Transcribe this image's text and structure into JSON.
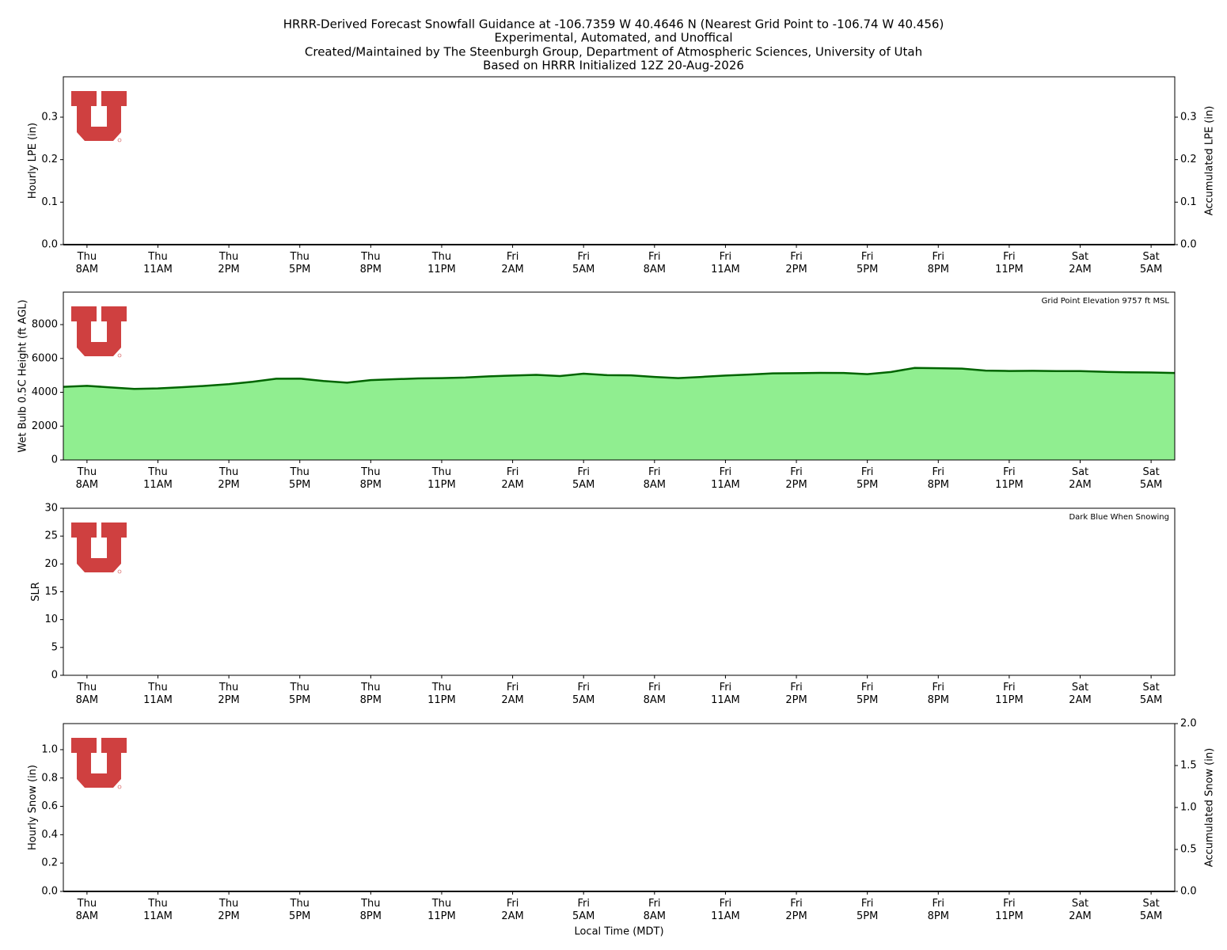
{
  "title": [
    "HRRR-Derived Forecast Snowfall Guidance at -106.7359 W 40.4646 N (Nearest Grid Point to -106.74 W 40.456)",
    "Experimental, Automated, and Unoffical",
    "Created/Maintained by The Steenburgh Group, Department of Atmospheric Sciences, University of Utah",
    "Based on HRRR Initialized 12Z 20-Aug-2026"
  ],
  "chart_data": [
    {
      "type": "line",
      "ylabel": "Hourly LPE (in)",
      "y2label": "Accumulated LPE (in)",
      "xlim": [
        0,
        47
      ],
      "ylim": [
        0,
        0.395
      ],
      "y2lim": [
        0,
        0.395
      ],
      "yticks": [
        {
          "value": 0,
          "label": "0.0"
        },
        {
          "value": 0.1,
          "label": "0.1"
        },
        {
          "value": 0.2,
          "label": "0.2"
        },
        {
          "value": 0.3,
          "label": "0.3"
        }
      ],
      "y2ticks": [
        {
          "value": 0,
          "label": "0.0"
        },
        {
          "value": 0.1,
          "label": "0.1"
        },
        {
          "value": 0.2,
          "label": "0.2"
        },
        {
          "value": 0.3,
          "label": "0.3"
        }
      ],
      "xticks": [
        {
          "value": 1,
          "label": "Thu\n8AM"
        },
        {
          "value": 4,
          "label": "Thu\n11AM"
        },
        {
          "value": 7,
          "label": "Thu\n2PM"
        },
        {
          "value": 10,
          "label": "Thu\n5PM"
        },
        {
          "value": 13,
          "label": "Thu\n8PM"
        },
        {
          "value": 16,
          "label": "Thu\n11PM"
        },
        {
          "value": 19,
          "label": "Fri\n2AM"
        },
        {
          "value": 22,
          "label": "Fri\n5AM"
        },
        {
          "value": 25,
          "label": "Fri\n8AM"
        },
        {
          "value": 28,
          "label": "Fri\n11AM"
        },
        {
          "value": 31,
          "label": "Fri\n2PM"
        },
        {
          "value": 34,
          "label": "Fri\n5PM"
        },
        {
          "value": 37,
          "label": "Fri\n8PM"
        },
        {
          "value": 40,
          "label": "Fri\n11PM"
        },
        {
          "value": 43,
          "label": "Sat\n2AM"
        },
        {
          "value": 46,
          "label": "Sat\n5AM"
        }
      ],
      "x": [
        0,
        1,
        2,
        3,
        4,
        5,
        6,
        7,
        8,
        9,
        10,
        11,
        12,
        13,
        14,
        15,
        16,
        17,
        18,
        19,
        20,
        21,
        22,
        23,
        24,
        25,
        26,
        27,
        28,
        29,
        30,
        31,
        32,
        33,
        34,
        35,
        36,
        37,
        38,
        39,
        40,
        41,
        42,
        43,
        44,
        45,
        46,
        47
      ],
      "series": [
        {
          "color": "#000000",
          "axis": "y2",
          "values": [
            0,
            0,
            0,
            0,
            0,
            0,
            0,
            0,
            0,
            0,
            0,
            0,
            0,
            0,
            0,
            0,
            0,
            0,
            0,
            0,
            0,
            0,
            0,
            0,
            0,
            0,
            0,
            0,
            0,
            0,
            0,
            0,
            0,
            0,
            0,
            0,
            0,
            0,
            0,
            0,
            0,
            0,
            0,
            0,
            0,
            0,
            0,
            0
          ]
        }
      ]
    },
    {
      "type": "area",
      "ylabel": "Wet Bulb 0.5C Height (ft AGL)",
      "annotation": "Grid Point Elevation 9757 ft MSL",
      "xlim": [
        0,
        47
      ],
      "ylim": [
        0,
        9920
      ],
      "yticks": [
        0,
        2000,
        4000,
        6000,
        8000
      ],
      "xticks": [
        {
          "value": 1,
          "label": "Thu\n8AM"
        },
        {
          "value": 4,
          "label": "Thu\n11AM"
        },
        {
          "value": 7,
          "label": "Thu\n2PM"
        },
        {
          "value": 10,
          "label": "Thu\n5PM"
        },
        {
          "value": 13,
          "label": "Thu\n8PM"
        },
        {
          "value": 16,
          "label": "Thu\n11PM"
        },
        {
          "value": 19,
          "label": "Fri\n2AM"
        },
        {
          "value": 22,
          "label": "Fri\n5AM"
        },
        {
          "value": 25,
          "label": "Fri\n8AM"
        },
        {
          "value": 28,
          "label": "Fri\n11AM"
        },
        {
          "value": 31,
          "label": "Fri\n2PM"
        },
        {
          "value": 34,
          "label": "Fri\n5PM"
        },
        {
          "value": 37,
          "label": "Fri\n8PM"
        },
        {
          "value": 40,
          "label": "Fri\n11PM"
        },
        {
          "value": 43,
          "label": "Sat\n2AM"
        },
        {
          "value": 46,
          "label": "Sat\n5AM"
        }
      ],
      "x": [
        0,
        1,
        2,
        3,
        4,
        5,
        6,
        7,
        8,
        9,
        10,
        11,
        12,
        13,
        14,
        15,
        16,
        17,
        18,
        19,
        20,
        21,
        22,
        23,
        24,
        25,
        26,
        27,
        28,
        29,
        30,
        31,
        32,
        33,
        34,
        35,
        36,
        37,
        38,
        39,
        40,
        41,
        42,
        43,
        44,
        45,
        46,
        47
      ],
      "series": [
        {
          "color": "#90ee90",
          "edgecolor": "#006400",
          "values": [
            4320,
            4380,
            4290,
            4200,
            4230,
            4300,
            4380,
            4480,
            4620,
            4800,
            4810,
            4670,
            4570,
            4720,
            4770,
            4820,
            4840,
            4870,
            4940,
            4990,
            5030,
            4960,
            5100,
            5010,
            5000,
            4910,
            4840,
            4910,
            4990,
            5050,
            5120,
            5130,
            5150,
            5140,
            5070,
            5200,
            5440,
            5420,
            5400,
            5280,
            5260,
            5270,
            5250,
            5250,
            5210,
            5180,
            5170,
            5140
          ]
        }
      ]
    },
    {
      "type": "line",
      "ylabel": "SLR",
      "annotation": "Dark Blue When Snowing",
      "xlim": [
        0,
        47
      ],
      "ylim": [
        0,
        30
      ],
      "yticks": [
        0,
        5,
        10,
        15,
        20,
        25,
        30
      ],
      "xticks": [
        {
          "value": 1,
          "label": "Thu\n8AM"
        },
        {
          "value": 4,
          "label": "Thu\n11AM"
        },
        {
          "value": 7,
          "label": "Thu\n2PM"
        },
        {
          "value": 10,
          "label": "Thu\n5PM"
        },
        {
          "value": 13,
          "label": "Thu\n8PM"
        },
        {
          "value": 16,
          "label": "Thu\n11PM"
        },
        {
          "value": 19,
          "label": "Fri\n2AM"
        },
        {
          "value": 22,
          "label": "Fri\n5AM"
        },
        {
          "value": 25,
          "label": "Fri\n8AM"
        },
        {
          "value": 28,
          "label": "Fri\n11AM"
        },
        {
          "value": 31,
          "label": "Fri\n2PM"
        },
        {
          "value": 34,
          "label": "Fri\n5PM"
        },
        {
          "value": 37,
          "label": "Fri\n8PM"
        },
        {
          "value": 40,
          "label": "Fri\n11PM"
        },
        {
          "value": 43,
          "label": "Sat\n2AM"
        },
        {
          "value": 46,
          "label": "Sat\n5AM"
        }
      ]
    },
    {
      "type": "line",
      "ylabel": "Hourly Snow (in)",
      "y2label": "Accumulated Snow (in)",
      "xlabel": "Local Time (MDT)",
      "xlim": [
        0,
        47
      ],
      "ylim": [
        0,
        1.184
      ],
      "y2lim": [
        0,
        2.0
      ],
      "yticks": [
        {
          "value": 0,
          "label": "0.0"
        },
        0.2,
        0.4,
        0.6,
        0.8,
        {
          "value": 1,
          "label": "1.0"
        }
      ],
      "y2ticks": [
        {
          "value": 0,
          "label": "0.0"
        },
        0.5,
        {
          "value": 1,
          "label": "1.0"
        },
        1.5,
        {
          "value": 2,
          "label": "2.0"
        }
      ],
      "xticks": [
        {
          "value": 1,
          "label": "Thu\n8AM"
        },
        {
          "value": 4,
          "label": "Thu\n11AM"
        },
        {
          "value": 7,
          "label": "Thu\n2PM"
        },
        {
          "value": 10,
          "label": "Thu\n5PM"
        },
        {
          "value": 13,
          "label": "Thu\n8PM"
        },
        {
          "value": 16,
          "label": "Thu\n11PM"
        },
        {
          "value": 19,
          "label": "Fri\n2AM"
        },
        {
          "value": 22,
          "label": "Fri\n5AM"
        },
        {
          "value": 25,
          "label": "Fri\n8AM"
        },
        {
          "value": 28,
          "label": "Fri\n11AM"
        },
        {
          "value": 31,
          "label": "Fri\n2PM"
        },
        {
          "value": 34,
          "label": "Fri\n5PM"
        },
        {
          "value": 37,
          "label": "Fri\n8PM"
        },
        {
          "value": 40,
          "label": "Fri\n11PM"
        },
        {
          "value": 43,
          "label": "Sat\n2AM"
        },
        {
          "value": 46,
          "label": "Sat\n5AM"
        }
      ],
      "x": [
        0,
        1,
        2,
        3,
        4,
        5,
        6,
        7,
        8,
        9,
        10,
        11,
        12,
        13,
        14,
        15,
        16,
        17,
        18,
        19,
        20,
        21,
        22,
        23,
        24,
        25,
        26,
        27,
        28,
        29,
        30,
        31,
        32,
        33,
        34,
        35,
        36,
        37,
        38,
        39,
        40,
        41,
        42,
        43,
        44,
        45,
        46,
        47
      ],
      "series": [
        {
          "color": "#000000",
          "axis": "y2",
          "values": [
            0,
            0,
            0,
            0,
            0,
            0,
            0,
            0,
            0,
            0,
            0,
            0,
            0,
            0,
            0,
            0,
            0,
            0,
            0,
            0,
            0,
            0,
            0,
            0,
            0,
            0,
            0,
            0,
            0,
            0,
            0,
            0,
            0,
            0,
            0,
            0,
            0,
            0,
            0,
            0,
            0,
            0,
            0,
            0,
            0,
            0,
            0,
            0
          ]
        }
      ]
    }
  ]
}
